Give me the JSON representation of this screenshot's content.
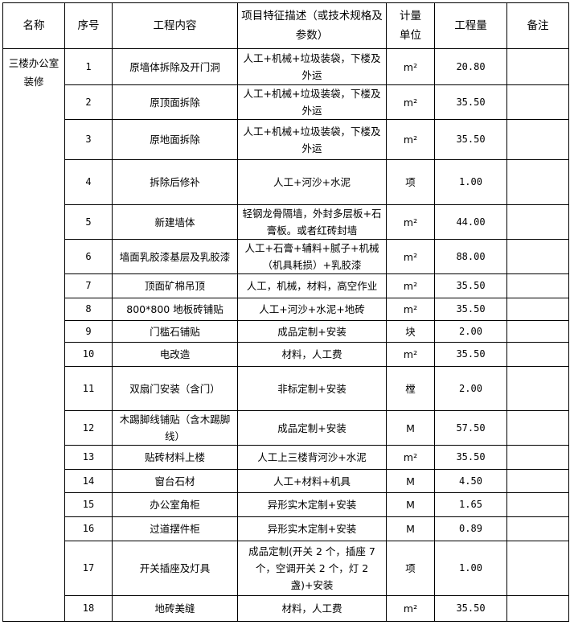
{
  "headers": {
    "name": "名称",
    "seq": "序号",
    "content": "工程内容",
    "desc": "项目特征描述（或技术规格及参数）",
    "unit": "计量单位",
    "qty": "工程量",
    "note": "备注"
  },
  "group_name": "三楼办公室装修",
  "rows": [
    {
      "seq": "1",
      "content": "原墙体拆除及开门洞",
      "desc": "人工+机械+垃圾装袋，下楼及外运",
      "unit": "m²",
      "qty": "20.80",
      "note": ""
    },
    {
      "seq": "2",
      "content": "原顶面拆除",
      "desc": "人工+机械+垃圾装袋，下楼及外运",
      "unit": "m²",
      "qty": "35.50",
      "note": ""
    },
    {
      "seq": "3",
      "content": "原地面拆除",
      "desc": "人工+机械+垃圾装袋，下楼及外运",
      "unit": "m²",
      "qty": "35.50",
      "note": ""
    },
    {
      "seq": "4",
      "content": "拆除后修补",
      "desc": "人工+河沙+水泥",
      "unit": "项",
      "qty": "1.00",
      "note": ""
    },
    {
      "seq": "5",
      "content": "新建墙体",
      "desc": "轻钢龙骨隔墙，外封多层板+石膏板。或者红砖封墙",
      "unit": "m²",
      "qty": "44.00",
      "note": ""
    },
    {
      "seq": "6",
      "content": "墙面乳胶漆基层及乳胶漆",
      "desc": "人工+石膏+辅料+腻子+机械（机具耗损）+乳胶漆",
      "unit": "m²",
      "qty": "88.00",
      "note": ""
    },
    {
      "seq": "7",
      "content": "顶面矿棉吊顶",
      "desc": "人工，机械，材料，高空作业",
      "unit": "m²",
      "qty": "35.50",
      "note": ""
    },
    {
      "seq": "8",
      "content": "800*800 地板砖铺贴",
      "desc": "人工+河沙+水泥+地砖",
      "unit": "m²",
      "qty": "35.50",
      "note": ""
    },
    {
      "seq": "9",
      "content": "门槛石铺贴",
      "desc": "成品定制+安装",
      "unit": "块",
      "qty": "2.00",
      "note": ""
    },
    {
      "seq": "10",
      "content": "电改造",
      "desc": "材料，人工费",
      "unit": "m²",
      "qty": "35.50",
      "note": ""
    },
    {
      "seq": "11",
      "content": "双扇门安装（含门）",
      "desc": "非标定制+安装",
      "unit": "樘",
      "qty": "2.00",
      "note": ""
    },
    {
      "seq": "12",
      "content": "木踢脚线铺贴（含木踢脚线）",
      "desc": "成品定制+安装",
      "unit": "M",
      "qty": "57.50",
      "note": ""
    },
    {
      "seq": "13",
      "content": "贴砖材料上楼",
      "desc": "人工上三楼背河沙+水泥",
      "unit": "m²",
      "qty": "35.50",
      "note": ""
    },
    {
      "seq": "14",
      "content": "窗台石材",
      "desc": "人工+材料+机具",
      "unit": "M",
      "qty": "4.50",
      "note": ""
    },
    {
      "seq": "15",
      "content": "办公室角柜",
      "desc": "异形实木定制+安装",
      "unit": "M",
      "qty": "1.65",
      "note": ""
    },
    {
      "seq": "16",
      "content": "过道摆件柜",
      "desc": "异形实木定制+安装",
      "unit": "M",
      "qty": "0.89",
      "note": ""
    },
    {
      "seq": "17",
      "content": "开关插座及灯具",
      "desc": "成品定制(开关 2 个，插座 7 个，空调开关 2 个，灯 2 盏)+安装",
      "unit": "项",
      "qty": "1.00",
      "note": ""
    },
    {
      "seq": "18",
      "content": "地砖美缝",
      "desc": "材料，人工费",
      "unit": "m²",
      "qty": "35.50",
      "note": ""
    }
  ]
}
